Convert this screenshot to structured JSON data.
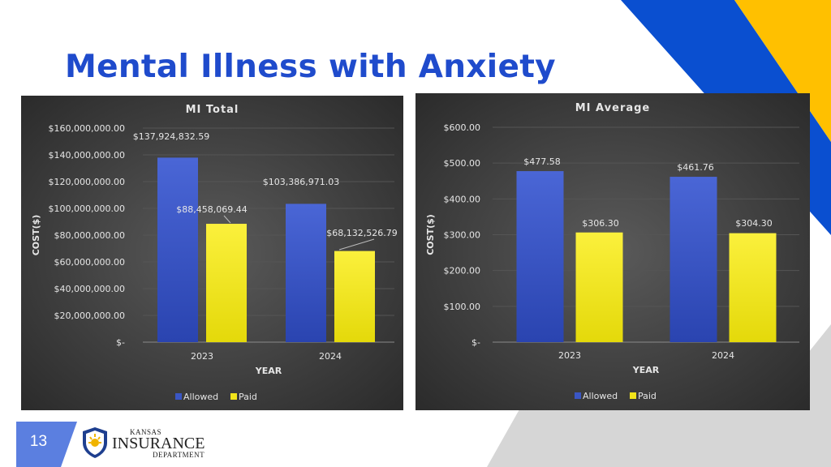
{
  "slide": {
    "title": "Mental Illness with Anxiety",
    "page_number": "13",
    "logo": {
      "line1": "Kansas",
      "line2": "Insurance",
      "line3": "Department"
    },
    "colors": {
      "title": "#1f4bcc",
      "accent_yellow": "#ffc000",
      "accent_blue": "#0a4fd0",
      "gray": "#d6d6d6",
      "page_tab": "#5b7fe0"
    }
  },
  "chart_data": [
    {
      "type": "bar",
      "title": "MI Total",
      "xlabel": "YEAR",
      "ylabel": "COST($)",
      "categories": [
        "2023",
        "2024"
      ],
      "series": [
        {
          "name": "Allowed",
          "values": [
            137924832.59,
            103386971.03
          ],
          "labels": [
            "$137,924,832.59",
            "$103,386,971.03"
          ],
          "color": "#3a56c4"
        },
        {
          "name": "Paid",
          "values": [
            88458069.44,
            68132526.79
          ],
          "labels": [
            "$88,458,069.44",
            "$68,132,526.79"
          ],
          "color": "#f2e41a"
        }
      ],
      "ylim": [
        0,
        160000000
      ],
      "yticks": [
        0,
        20000000,
        40000000,
        60000000,
        80000000,
        100000000,
        120000000,
        140000000,
        160000000
      ],
      "ytick_labels": [
        "$-",
        "$20,000,000.00",
        "$40,000,000.00",
        "$60,000,000.00",
        "$80,000,000.00",
        "$100,000,000.00",
        "$120,000,000.00",
        "$140,000,000.00",
        "$160,000,000.00"
      ],
      "grid": true,
      "legend": "bottom"
    },
    {
      "type": "bar",
      "title": "MI Average",
      "xlabel": "YEAR",
      "ylabel": "COST($)",
      "categories": [
        "2023",
        "2024"
      ],
      "series": [
        {
          "name": "Allowed",
          "values": [
            477.58,
            461.76
          ],
          "labels": [
            "$477.58",
            "$461.76"
          ],
          "color": "#3a56c4"
        },
        {
          "name": "Paid",
          "values": [
            306.3,
            304.3
          ],
          "labels": [
            "$306.30",
            "$304.30"
          ],
          "color": "#f2e41a"
        }
      ],
      "ylim": [
        0,
        600
      ],
      "yticks": [
        0,
        100,
        200,
        300,
        400,
        500,
        600
      ],
      "ytick_labels": [
        "$-",
        "$100.00",
        "$200.00",
        "$300.00",
        "$400.00",
        "$500.00",
        "$600.00"
      ],
      "grid": true,
      "legend": "bottom"
    }
  ]
}
